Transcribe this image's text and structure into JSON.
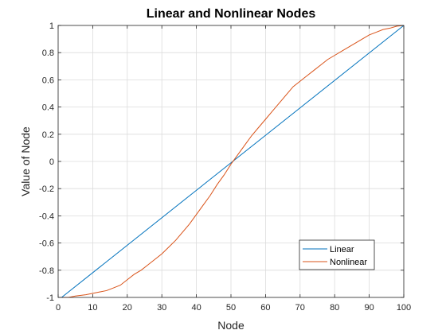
{
  "colors": {
    "linear": "#0072bd",
    "nonlinear": "#d95319",
    "grid": "#dcdcdc",
    "axis": "#262626",
    "background": "#ffffff"
  },
  "chart_data": {
    "type": "line",
    "title": "Linear and Nonlinear Nodes",
    "xlabel": "Node",
    "ylabel": "Value of Node",
    "xlim": [
      0,
      100
    ],
    "ylim": [
      -1,
      1
    ],
    "x_ticks": [
      0,
      10,
      20,
      30,
      40,
      50,
      60,
      70,
      80,
      90,
      100
    ],
    "x_tick_labels": [
      "0",
      "10",
      "20",
      "30",
      "40",
      "50",
      "60",
      "70",
      "80",
      "90",
      "100"
    ],
    "y_ticks": [
      -1,
      -0.8,
      -0.6,
      -0.4,
      -0.2,
      0,
      0.2,
      0.4,
      0.6,
      0.8,
      1
    ],
    "y_tick_labels": [
      "-1",
      "-0.8",
      "-0.6",
      "-0.4",
      "-0.2",
      "0",
      "0.2",
      "0.4",
      "0.6",
      "0.8",
      "1"
    ],
    "grid": true,
    "legend_position": "bottom-right",
    "series": [
      {
        "name": "Linear",
        "color": "#0072bd",
        "x": [
          1,
          100
        ],
        "y": [
          -1,
          1
        ]
      },
      {
        "name": "Nonlinear",
        "color": "#d95319",
        "x": [
          1,
          3,
          5,
          8,
          10,
          12,
          14,
          16,
          18,
          20,
          22,
          24,
          26,
          28,
          30,
          32,
          34,
          36,
          38,
          40,
          42,
          44,
          46,
          48,
          50,
          52,
          54,
          56,
          58,
          60,
          62,
          64,
          66,
          68,
          70,
          72,
          74,
          76,
          78,
          80,
          82,
          84,
          86,
          88,
          90,
          92,
          94,
          96,
          98,
          100
        ],
        "y": [
          -1,
          -1,
          -0.99,
          -0.98,
          -0.97,
          -0.96,
          -0.95,
          -0.93,
          -0.91,
          -0.87,
          -0.83,
          -0.8,
          -0.76,
          -0.72,
          -0.68,
          -0.63,
          -0.58,
          -0.52,
          -0.46,
          -0.39,
          -0.32,
          -0.25,
          -0.17,
          -0.1,
          -0.02,
          0.05,
          0.12,
          0.19,
          0.25,
          0.31,
          0.37,
          0.43,
          0.49,
          0.55,
          0.59,
          0.63,
          0.67,
          0.71,
          0.75,
          0.78,
          0.81,
          0.84,
          0.87,
          0.9,
          0.93,
          0.95,
          0.97,
          0.98,
          0.995,
          1
        ]
      }
    ]
  }
}
